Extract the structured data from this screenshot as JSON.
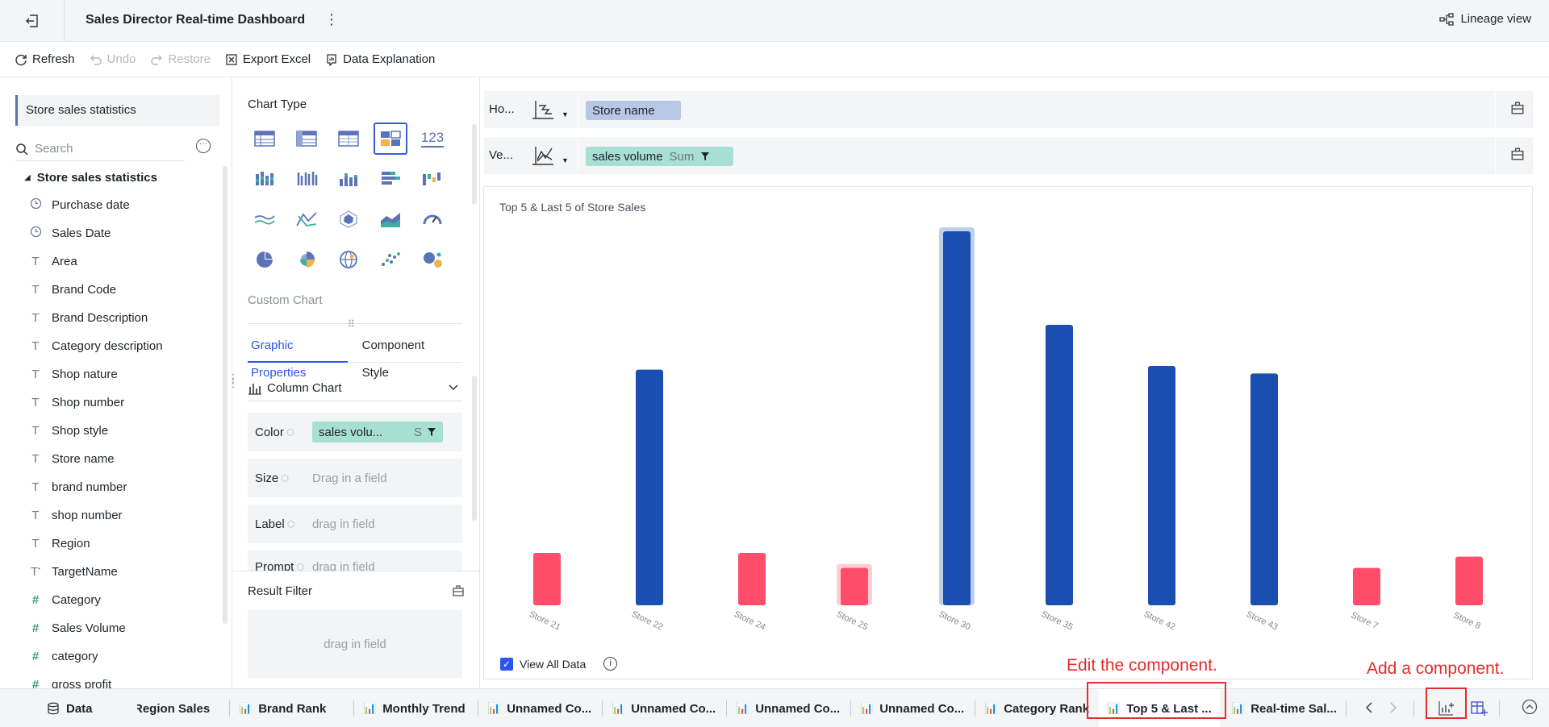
{
  "header": {
    "title": "Sales Director Real-time Dashboard",
    "more": "⋮",
    "lineage_label": "Lineage view"
  },
  "toolbar": {
    "refresh": "Refresh",
    "undo": "Undo",
    "restore": "Restore",
    "export_excel": "Export Excel",
    "data_explanation": "Data Explanation"
  },
  "data_panel": {
    "dataset": "Store sales statistics",
    "search_placeholder": "Search",
    "tree_root": "Store sales statistics",
    "fields": [
      {
        "icon": "clock",
        "label": "Purchase date"
      },
      {
        "icon": "clock",
        "label": "Sales Date"
      },
      {
        "icon": "text",
        "label": "Area"
      },
      {
        "icon": "text",
        "label": "Brand Code"
      },
      {
        "icon": "text",
        "label": "Brand Description"
      },
      {
        "icon": "text",
        "label": "Category description"
      },
      {
        "icon": "text",
        "label": "Shop nature"
      },
      {
        "icon": "text",
        "label": "Shop number"
      },
      {
        "icon": "text",
        "label": "Shop style"
      },
      {
        "icon": "text",
        "label": "Store name"
      },
      {
        "icon": "text",
        "label": "brand number"
      },
      {
        "icon": "text",
        "label": "shop number"
      },
      {
        "icon": "text",
        "label": "Region"
      },
      {
        "icon": "text-calc",
        "label": "TargetName"
      },
      {
        "icon": "number",
        "label": "Category"
      },
      {
        "icon": "number",
        "label": "Sales Volume"
      },
      {
        "icon": "number",
        "label": "category"
      },
      {
        "icon": "number",
        "label": "gross profit"
      }
    ]
  },
  "config": {
    "chart_type_label": "Chart Type",
    "number_chart_glyph": "123",
    "custom_chart_label": "Custom Chart",
    "tabs": [
      "Graphic Properties",
      "Component Style"
    ],
    "chart_select": "Column Chart",
    "color_label": "Color",
    "color_field": "sales volu...",
    "color_agg": "S",
    "size_label": "Size",
    "size_placeholder": "Drag in a field",
    "label_label": "Label",
    "label_placeholder": "drag in field",
    "prompt_label": "Prompt",
    "prompt_placeholder": "drag in field",
    "result_filter_label": "Result Filter",
    "result_filter_placeholder": "drag in field"
  },
  "shelves": {
    "horizontal_label": "Ho...",
    "horizontal_field": "Store name",
    "vertical_label": "Ve...",
    "vertical_field": "sales volume",
    "vertical_agg": "Sum"
  },
  "chart_data": {
    "type": "bar",
    "title": "Top 5 & Last 5 of Store Sales",
    "categories": [
      "Store 21",
      "Store 22",
      "Store 24",
      "Store 25",
      "Store 30",
      "Store 35",
      "Store 42",
      "Store 43",
      "Store 7",
      "Store 8"
    ],
    "values": [
      14,
      63,
      14,
      10,
      100,
      75,
      64,
      62,
      10,
      13
    ],
    "groups": [
      "last",
      "top",
      "last",
      "last",
      "top",
      "top",
      "top",
      "top",
      "last",
      "last"
    ],
    "highlighted": [
      "Store 25",
      "Store 30"
    ],
    "colors": {
      "top": "#1a4eb0",
      "last": "#ff4d6a"
    },
    "ylim": [
      0,
      100
    ]
  },
  "view_all_label": "View All Data",
  "annotations": {
    "edit": "Edit the component.",
    "add": "Add a component."
  },
  "bottom_tabs": [
    "Data",
    "Region Sales",
    "Brand Rank",
    "Monthly Trend",
    "Unnamed Co...",
    "Unnamed Co...",
    "Unnamed Co...",
    "Unnamed Co...",
    "Category Rank",
    "Top 5 & Last ...",
    "Real-time Sal..."
  ]
}
